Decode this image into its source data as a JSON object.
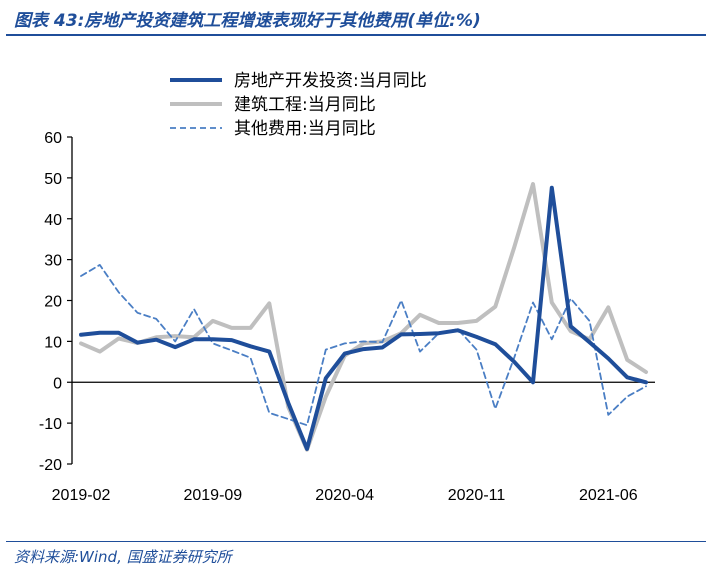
{
  "figure": {
    "title": "图表 43:房地产投资建筑工程增速表现好于其他费用(单位:%)",
    "source": "资料来源:Wind, 国盛证券研究所"
  },
  "chart_data": {
    "type": "line",
    "title": "房地产投资建筑工程增速表现好于其他费用",
    "unit": "%",
    "xlabel": "",
    "ylabel": "",
    "ylim": [
      -20,
      60
    ],
    "yticks": [
      -20,
      -10,
      0,
      10,
      20,
      30,
      40,
      50,
      60
    ],
    "xtick_labels": [
      "2019-02",
      "2019-09",
      "2020-04",
      "2020-11",
      "2021-06"
    ],
    "grid": false,
    "legend_position": "top-center",
    "x": [
      "2019-02",
      "2019-03",
      "2019-04",
      "2019-05",
      "2019-06",
      "2019-07",
      "2019-08",
      "2019-09",
      "2019-10",
      "2019-11",
      "2019-12",
      "2020-01",
      "2020-02",
      "2020-03",
      "2020-04",
      "2020-05",
      "2020-06",
      "2020-07",
      "2020-08",
      "2020-09",
      "2020-10",
      "2020-11",
      "2020-12",
      "2021-01",
      "2021-02",
      "2021-03",
      "2021-04",
      "2021-05",
      "2021-06",
      "2021-07",
      "2021-08"
    ],
    "series": [
      {
        "name": "房地产开发投资:当月同比",
        "color": "#1F4E9A",
        "style": "solid-thick",
        "values": [
          11.6,
          12.1,
          12.1,
          9.7,
          10.4,
          8.6,
          10.5,
          10.5,
          10.3,
          8.8,
          7.5,
          -5.0,
          -16.3,
          1.0,
          7.0,
          8.1,
          8.5,
          11.7,
          11.8,
          12.0,
          12.7,
          11.1,
          9.3,
          5.0,
          0.0,
          47.6,
          13.7,
          9.8,
          5.8,
          1.2,
          0.0
        ]
      },
      {
        "name": "建筑工程:当月同比",
        "color": "#BFBFBF",
        "style": "solid-thick",
        "values": [
          9.5,
          7.5,
          10.7,
          9.6,
          11.0,
          11.3,
          11.0,
          15.0,
          13.3,
          13.3,
          19.3,
          -6.0,
          -16.5,
          -3.5,
          6.5,
          9.5,
          10.0,
          12.0,
          16.5,
          14.5,
          14.5,
          15.0,
          18.5,
          33.0,
          48.5,
          19.5,
          12.5,
          10.5,
          18.3,
          5.5,
          2.5
        ]
      },
      {
        "name": "其他费用:当月同比",
        "color": "#4A7EC4",
        "style": "dashed",
        "values": [
          26.0,
          28.7,
          22.0,
          17.0,
          15.5,
          10.0,
          17.9,
          9.5,
          7.8,
          6.0,
          -7.5,
          -9.0,
          -10.5,
          8.0,
          9.5,
          10.0,
          9.8,
          20.0,
          7.5,
          12.0,
          13.0,
          8.0,
          -6.5,
          6.0,
          19.5,
          10.5,
          20.5,
          15.0,
          -8.0,
          -3.5,
          -1.0
        ]
      }
    ]
  }
}
